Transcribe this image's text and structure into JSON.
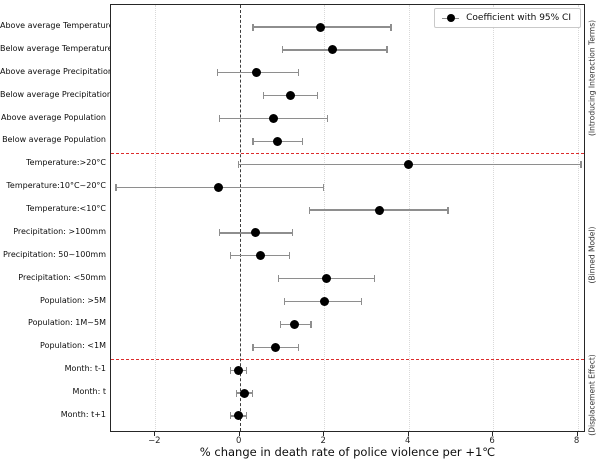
{
  "chart_data": {
    "type": "scatter",
    "subtype": "coefficient-forest-plot",
    "title": "",
    "xlabel": "% change in death rate of police violence per +1℃",
    "ylabel": "",
    "xlim": [
      -3.05,
      8.2
    ],
    "xticks": [
      -2,
      0,
      2,
      4,
      6,
      8
    ],
    "xtick_labels": [
      "−2",
      "0",
      "2",
      "4",
      "6",
      "8"
    ],
    "grid": "vertical-dotted",
    "zero_reference_line": 0,
    "legend": {
      "label": "Coefficient with 95% CI",
      "position": "upper right",
      "marker_icon": "dot-with-errorbar-icon"
    },
    "rows": [
      {
        "label": "Above average Temperature",
        "coef": 1.9,
        "ci_low": 0.3,
        "ci_high": 3.6
      },
      {
        "label": "Below average Temperature",
        "coef": 2.2,
        "ci_low": 1.0,
        "ci_high": 3.5
      },
      {
        "label": "Above average Precipitation",
        "coef": 0.4,
        "ci_low": -0.55,
        "ci_high": 1.4
      },
      {
        "label": "Below average Precipitation",
        "coef": 1.2,
        "ci_low": 0.55,
        "ci_high": 1.85
      },
      {
        "label": "Above average Population",
        "coef": 0.8,
        "ci_low": -0.5,
        "ci_high": 2.1
      },
      {
        "label": "Below average Population",
        "coef": 0.9,
        "ci_low": 0.3,
        "ci_high": 1.5
      },
      {
        "label": "Temperature:>20°C",
        "coef": 4.0,
        "ci_low": -0.05,
        "ci_high": 8.1
      },
      {
        "label": "Temperature:10°C~20°C",
        "coef": -0.5,
        "ci_low": -2.95,
        "ci_high": 2.0
      },
      {
        "label": "Temperature:<10°C",
        "coef": 3.3,
        "ci_low": 1.63,
        "ci_high": 4.95
      },
      {
        "label": "Precipitation: >100mm",
        "coef": 0.37,
        "ci_low": -0.5,
        "ci_high": 1.27
      },
      {
        "label": "Precipitation: 50~100mm",
        "coef": 0.49,
        "ci_low": -0.23,
        "ci_high": 1.2
      },
      {
        "label": "Precipitation: <50mm",
        "coef": 2.05,
        "ci_low": 0.9,
        "ci_high": 3.2
      },
      {
        "label": "Population: >5M",
        "coef": 2.0,
        "ci_low": 1.05,
        "ci_high": 2.9
      },
      {
        "label": "Population: 1M~5M",
        "coef": 1.3,
        "ci_low": 0.95,
        "ci_high": 1.7
      },
      {
        "label": "Population: <1M",
        "coef": 0.85,
        "ci_low": 0.3,
        "ci_high": 1.4
      },
      {
        "label": "Month: t-1",
        "coef": -0.02,
        "ci_low": -0.23,
        "ci_high": 0.18
      },
      {
        "label": "Month: t",
        "coef": 0.11,
        "ci_low": -0.1,
        "ci_high": 0.32
      },
      {
        "label": "Month: t+1",
        "coef": -0.02,
        "ci_low": -0.23,
        "ci_high": 0.18
      }
    ],
    "separators_after_row": [
      5,
      14
    ],
    "sections": [
      {
        "label": "(Introducing Interaction Terms)",
        "first_row": 0,
        "last_row": 5
      },
      {
        "label": "(Binned Model)",
        "first_row": 6,
        "last_row": 14
      },
      {
        "label": "(Displacement Effect)",
        "first_row": 15,
        "last_row": 17
      }
    ],
    "colors": {
      "marker": "#000000",
      "error_bar": "#8e8e8e",
      "separator": "#dd2c2c",
      "zero_line": "#3d3d3d",
      "grid": "#d9d9d9",
      "spine": "#262626"
    }
  }
}
